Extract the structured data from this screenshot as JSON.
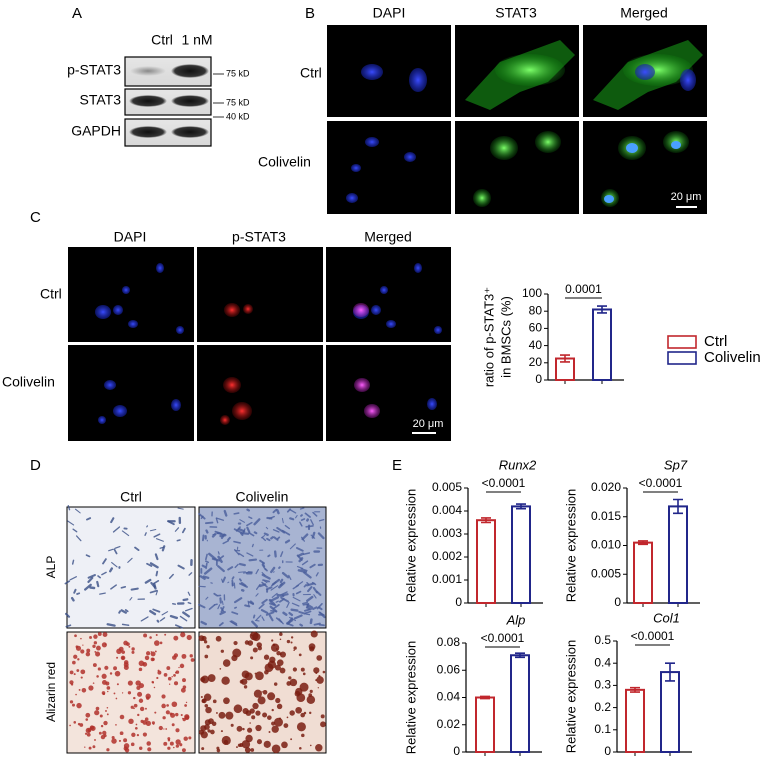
{
  "panel_labels": [
    "A",
    "B",
    "C",
    "D",
    "E"
  ],
  "panel_a": {
    "lanes": [
      "Ctrl",
      "1 nM"
    ],
    "rows": [
      "p-STAT3",
      "STAT3",
      "GAPDH"
    ],
    "markers": [
      "75 kD",
      "75 kD",
      "40 kD"
    ]
  },
  "panel_b": {
    "columns": [
      "DAPI",
      "STAT3",
      "Merged"
    ],
    "rows": [
      "Ctrl",
      "Colivelin"
    ],
    "scale_bar": "20 μm"
  },
  "panel_c": {
    "columns": [
      "DAPI",
      "p-STAT3",
      "Merged"
    ],
    "rows": [
      "Ctrl",
      "Colivelin"
    ],
    "scale_bar": "20 μm"
  },
  "panel_d": {
    "columns": [
      "Ctrl",
      "Colivelin"
    ],
    "rows": [
      "ALP",
      "Alizarin red"
    ]
  },
  "chart_data": [
    {
      "type": "bar",
      "y_label": [
        "ratio of p-STAT3⁺",
        "in BMSCs (%)"
      ],
      "legend": "right",
      "series": [
        {
          "name": "Ctrl",
          "color": "#c1272d",
          "values": [
            25
          ],
          "errors": [
            4
          ]
        },
        {
          "name": "Colivelin",
          "color": "#21268a",
          "values": [
            82
          ],
          "errors": [
            4
          ]
        }
      ],
      "ylim": [
        0,
        100
      ],
      "yticks": [
        0,
        20,
        40,
        60,
        80,
        100
      ],
      "annotation": "0.0001"
    },
    {
      "type": "bar",
      "title": "Runx2",
      "y_label": [
        "Relative expression"
      ],
      "series": [
        {
          "color": "#c1272d",
          "values": [
            0.0036
          ],
          "errors": [
            0.0001
          ]
        },
        {
          "color": "#21268a",
          "values": [
            0.0042
          ],
          "errors": [
            0.0001
          ]
        }
      ],
      "ylim": [
        0,
        0.005
      ],
      "yticks": [
        0,
        0.001,
        0.002,
        0.003,
        0.004,
        0.005
      ],
      "annotation": "<0.0001"
    },
    {
      "type": "bar",
      "title": "Sp7",
      "y_label": [
        "Relative expression"
      ],
      "series": [
        {
          "color": "#c1272d",
          "values": [
            0.0105
          ],
          "errors": [
            0.0003
          ]
        },
        {
          "color": "#21268a",
          "values": [
            0.0168
          ],
          "errors": [
            0.0012
          ]
        }
      ],
      "ylim": [
        0,
        0.02
      ],
      "yticks": [
        0,
        0.005,
        {
          "value": 0.01,
          "label": "0.010"
        },
        0.015,
        {
          "value": 0.02,
          "label": "0.020"
        }
      ],
      "annotation": "<0.0001"
    },
    {
      "type": "bar",
      "title": "Alp",
      "y_label": [
        "Relative expression"
      ],
      "series": [
        {
          "color": "#c1272d",
          "values": [
            0.04
          ],
          "errors": [
            0.0008
          ]
        },
        {
          "color": "#21268a",
          "values": [
            0.071
          ],
          "errors": [
            0.0015
          ]
        }
      ],
      "ylim": [
        0,
        0.08
      ],
      "yticks": [
        0,
        0.02,
        0.04,
        0.06,
        0.08
      ],
      "annotation": "<0.0001"
    },
    {
      "type": "bar",
      "title": "Col1",
      "y_label": [
        "Relative expression"
      ],
      "series": [
        {
          "color": "#c1272d",
          "values": [
            0.28
          ],
          "errors": [
            0.01
          ]
        },
        {
          "color": "#21268a",
          "values": [
            0.36
          ],
          "errors": [
            0.04
          ]
        }
      ],
      "ylim": [
        0,
        0.5
      ],
      "yticks": [
        0,
        0.1,
        0.2,
        0.3,
        0.4,
        0.5
      ],
      "annotation": "<0.0001"
    }
  ]
}
